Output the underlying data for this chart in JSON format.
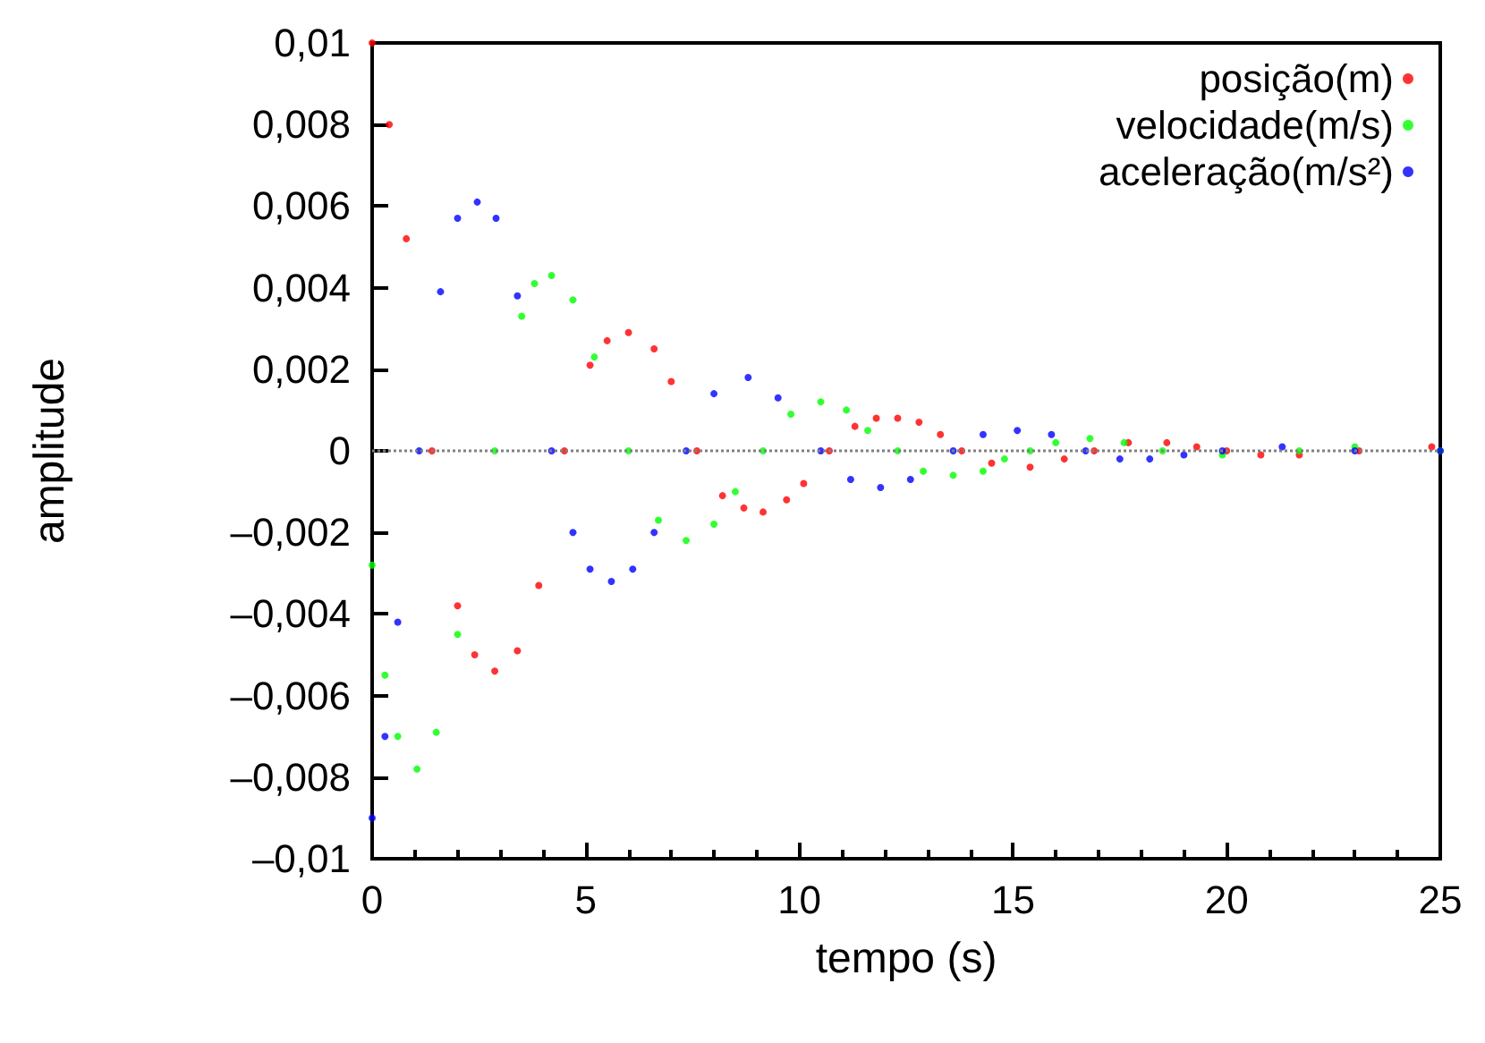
{
  "chart_data": {
    "type": "scatter",
    "xlabel": "tempo (s)",
    "ylabel": "amplitude",
    "marker": "circle",
    "grid": false,
    "legend": "top right",
    "xlim": [
      0,
      25
    ],
    "xticks": [
      0,
      5,
      10,
      15,
      20,
      25
    ],
    "ylim": [
      -0.01,
      0.01
    ],
    "yticks": [
      {
        "value": -0.01,
        "label": "–0,01"
      },
      {
        "value": -0.008,
        "label": "–0,008"
      },
      {
        "value": -0.006,
        "label": "–0,006"
      },
      {
        "value": -0.004,
        "label": "–0,004"
      },
      {
        "value": -0.002,
        "label": "–0,002"
      },
      {
        "value": 0,
        "label": "0"
      },
      {
        "value": 0.002,
        "label": "0,002"
      },
      {
        "value": 0.004,
        "label": "0,004"
      },
      {
        "value": 0.006,
        "label": "0,006"
      },
      {
        "value": 0.008,
        "label": "0,008"
      },
      {
        "value": 0.01,
        "label": "0,01"
      }
    ],
    "ref_lines": [
      {
        "axis": "y",
        "value": 0,
        "color": "#808080",
        "line_style": "dotted"
      }
    ],
    "series": [
      {
        "name": "posição(m)",
        "color": "#ff0000",
        "x": [
          0,
          0.4,
          0.8,
          1.4,
          2.0,
          2.4,
          2.87,
          3.4,
          3.9,
          4.5,
          5.1,
          5.5,
          6.0,
          6.6,
          7.0,
          7.6,
          8.2,
          8.7,
          9.15,
          9.7,
          10.1,
          10.7,
          11.3,
          11.8,
          12.3,
          12.8,
          13.3,
          13.8,
          14.5,
          15.4,
          16.2,
          16.9,
          17.7,
          18.6,
          19.3,
          20.0,
          20.8,
          21.7,
          23.1,
          24.8
        ],
        "values": [
          0.01,
          0.008,
          0.0052,
          0,
          -0.0038,
          -0.005,
          -0.0054,
          -0.0049,
          -0.0033,
          0,
          0.0021,
          0.0027,
          0.0029,
          0.0025,
          0.0017,
          0,
          -0.0011,
          -0.0014,
          -0.0015,
          -0.0012,
          -0.0008,
          0,
          0.0006,
          0.0008,
          0.0008,
          0.0007,
          0.0004,
          0,
          -0.0003,
          -0.0004,
          -0.0002,
          0,
          0.0002,
          0.0002,
          0.0001,
          0,
          -0.0001,
          -0.0001,
          0,
          0.0001
        ]
      },
      {
        "name": "velocidade(m/s)",
        "color": "#00ff00",
        "x": [
          0,
          0.3,
          0.6,
          1.05,
          1.5,
          2.0,
          2.87,
          3.5,
          3.8,
          4.2,
          4.7,
          5.2,
          6.0,
          6.7,
          7.35,
          8.0,
          8.5,
          9.15,
          9.8,
          10.5,
          11.1,
          11.6,
          12.3,
          12.9,
          13.6,
          14.3,
          14.8,
          15.4,
          16.0,
          16.8,
          17.6,
          18.5,
          19.9,
          21.7,
          23.0,
          25
        ],
        "values": [
          -0.0028,
          -0.0055,
          -0.007,
          -0.0078,
          -0.0069,
          -0.0045,
          0,
          0.0033,
          0.0041,
          0.0043,
          0.0037,
          0.0023,
          0,
          -0.0017,
          -0.0022,
          -0.0018,
          -0.001,
          0,
          0.0009,
          0.0012,
          0.001,
          0.0005,
          0,
          -0.0005,
          -0.0006,
          -0.0005,
          -0.0002,
          0,
          0.0002,
          0.0003,
          0.0002,
          0,
          -0.0001,
          0,
          0.0001,
          0
        ]
      },
      {
        "name": "aceleração(m/s²)",
        "color": "#0000ff",
        "x": [
          0,
          0.3,
          0.6,
          1.1,
          1.6,
          2.0,
          2.46,
          2.9,
          3.4,
          4.2,
          4.7,
          5.1,
          5.6,
          6.1,
          6.6,
          7.35,
          8.0,
          8.8,
          9.5,
          10.5,
          11.2,
          11.9,
          12.6,
          13.6,
          14.3,
          15.1,
          15.9,
          16.7,
          17.5,
          18.2,
          19.0,
          19.9,
          21.3,
          23.0,
          25
        ],
        "values": [
          -0.009,
          -0.007,
          -0.0042,
          0,
          0.0039,
          0.0057,
          0.0061,
          0.0057,
          0.0038,
          0,
          -0.002,
          -0.0029,
          -0.0032,
          -0.0029,
          -0.002,
          0,
          0.0014,
          0.0018,
          0.0013,
          0,
          -0.0007,
          -0.0009,
          -0.0007,
          0,
          0.0004,
          0.0005,
          0.0004,
          0,
          -0.0002,
          -0.0002,
          -0.0001,
          0,
          0.0001,
          0,
          0
        ]
      }
    ]
  }
}
